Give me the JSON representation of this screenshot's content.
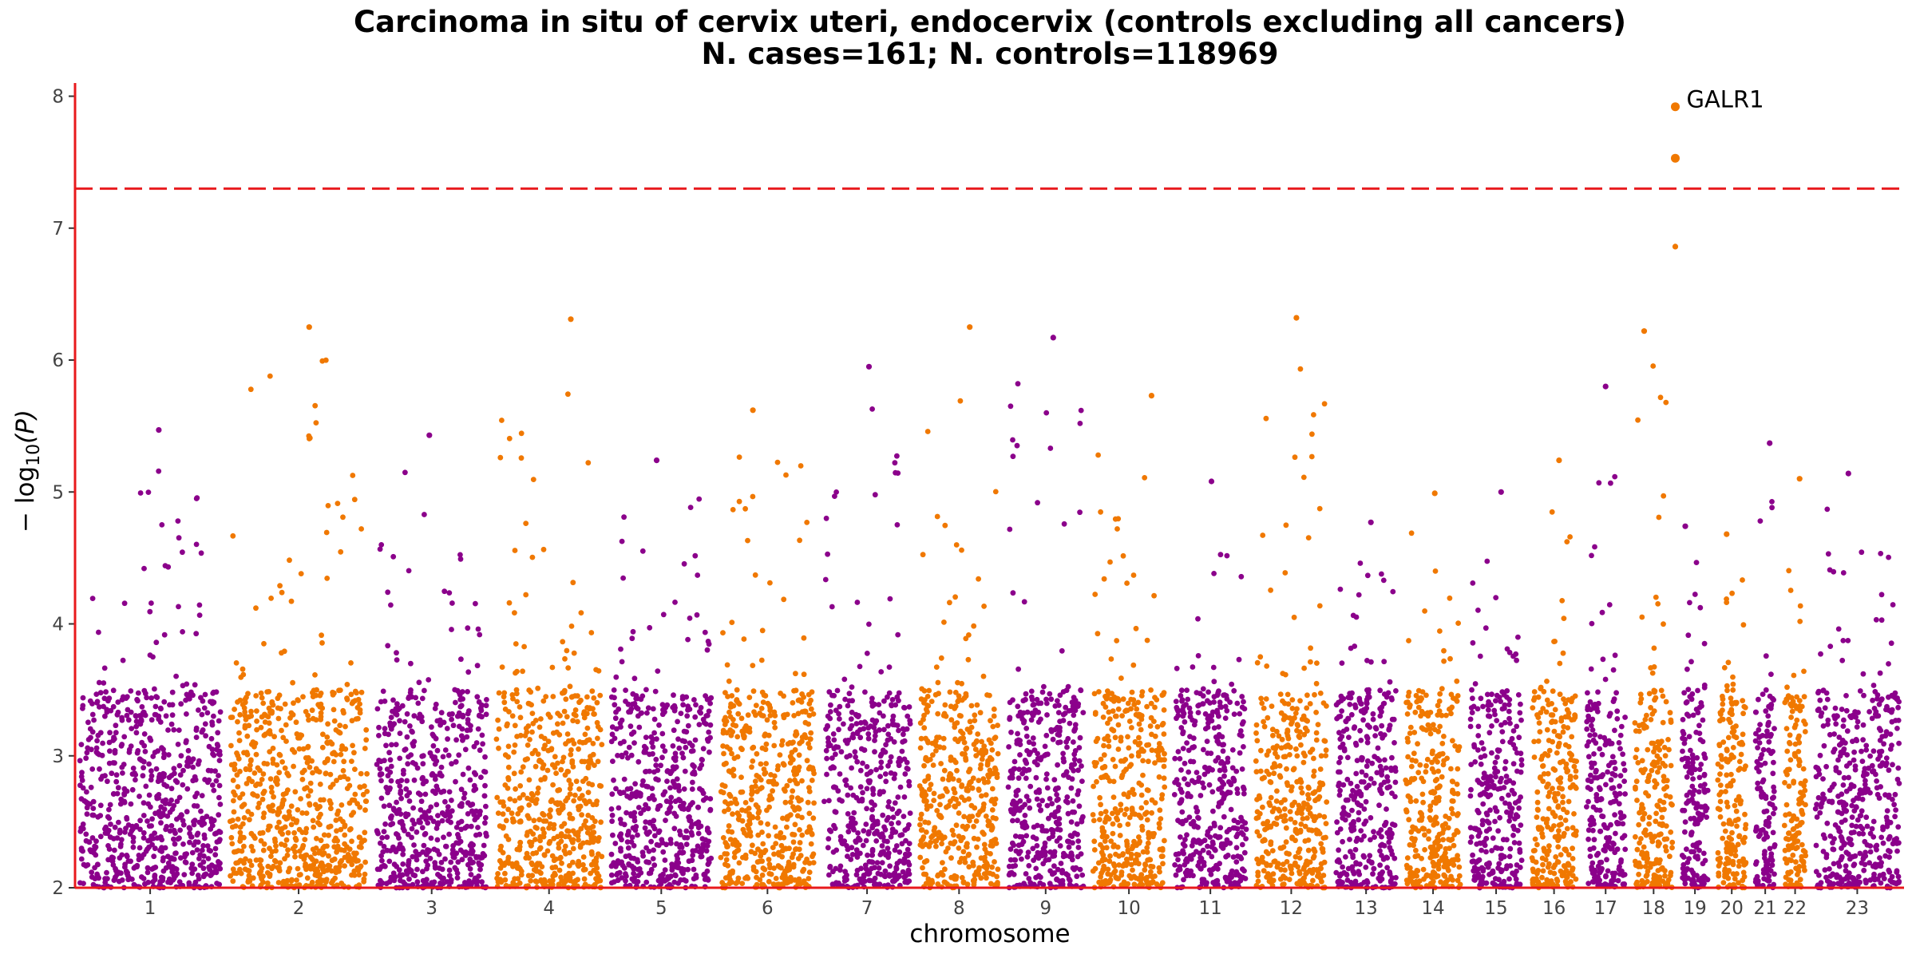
{
  "chart_data": {
    "type": "scatter",
    "title": "Carcinoma in situ of cervix uteri, endocervix (controls excluding all cancers)",
    "subtitle": "N. cases=161; N. controls=118969",
    "xlabel": "chromosome",
    "ylabel_parts": {
      "prefix": "− log",
      "subscript": "10",
      "suffix": "(P)"
    },
    "ylim": [
      2,
      8.1
    ],
    "y_ticks": [
      2,
      3,
      4,
      5,
      6,
      7,
      8
    ],
    "significance_line": {
      "y": 7.3,
      "color": "#e8191c",
      "style": "dashed"
    },
    "colors": {
      "odd_chromosomes": "#8b008b",
      "even_chromosomes": "#f07800",
      "axis": "#e8191c"
    },
    "chromosomes": [
      {
        "label": "1",
        "length": 249,
        "max": 5.47
      },
      {
        "label": "2",
        "length": 243,
        "max": 6.25
      },
      {
        "label": "3",
        "length": 198,
        "max": 5.43
      },
      {
        "label": "4",
        "length": 191,
        "max": 6.31
      },
      {
        "label": "5",
        "length": 181,
        "max": 5.24
      },
      {
        "label": "6",
        "length": 171,
        "max": 5.62
      },
      {
        "label": "7",
        "length": 159,
        "max": 5.95
      },
      {
        "label": "8",
        "length": 146,
        "max": 6.25
      },
      {
        "label": "9",
        "length": 141,
        "max": 6.17
      },
      {
        "label": "10",
        "length": 135,
        "max": 5.73
      },
      {
        "label": "11",
        "length": 135,
        "max": 5.08
      },
      {
        "label": "12",
        "length": 133,
        "max": 6.32
      },
      {
        "label": "13",
        "length": 115,
        "max": 4.77
      },
      {
        "label": "14",
        "length": 107,
        "max": 4.99
      },
      {
        "label": "15",
        "length": 102,
        "max": 5.0
      },
      {
        "label": "16",
        "length": 90,
        "max": 5.24
      },
      {
        "label": "17",
        "length": 81,
        "max": 5.8
      },
      {
        "label": "18",
        "length": 78,
        "max": 6.22
      },
      {
        "label": "19",
        "length": 59,
        "max": 4.74
      },
      {
        "label": "20",
        "length": 63,
        "max": 4.68
      },
      {
        "label": "21",
        "length": 48,
        "max": 5.37
      },
      {
        "label": "22",
        "length": 51,
        "max": 5.1
      },
      {
        "label": "23",
        "length": 155,
        "max": 5.14
      }
    ],
    "top_hits": [
      {
        "chromosome": "18",
        "position": 74.9,
        "y": 7.92,
        "label": "GALR1"
      },
      {
        "chromosome": "18",
        "position": 74.9,
        "y": 7.53,
        "label": ""
      },
      {
        "chromosome": "18",
        "position": 74.9,
        "y": 6.86,
        "label": ""
      }
    ],
    "grid": false,
    "legend": "none"
  }
}
